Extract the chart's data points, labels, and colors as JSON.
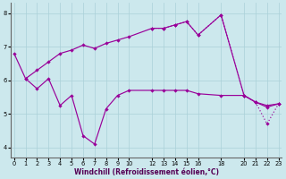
{
  "xlabel": "Windchill (Refroidissement éolien,°C)",
  "background_color": "#cce8ed",
  "grid_color": "#aad0d8",
  "line_color": "#990099",
  "xtick_values": [
    0,
    1,
    2,
    3,
    4,
    5,
    6,
    7,
    8,
    9,
    10,
    12,
    13,
    14,
    15,
    16,
    18,
    20,
    21,
    22,
    23
  ],
  "ylim": [
    3.7,
    8.3
  ],
  "xlim": [
    -0.3,
    23.3
  ],
  "line1_x": [
    0,
    1,
    2,
    3,
    4,
    5,
    6,
    7,
    8,
    9,
    10,
    12,
    13,
    14,
    15,
    16,
    18,
    20,
    21,
    22,
    23
  ],
  "line1_y": [
    6.8,
    6.05,
    5.75,
    6.05,
    5.25,
    5.55,
    4.35,
    4.1,
    5.15,
    5.55,
    5.7,
    5.7,
    5.7,
    5.7,
    5.7,
    5.6,
    5.55,
    5.55,
    5.35,
    5.25,
    5.3
  ],
  "line2_x": [
    1,
    2,
    3,
    4,
    5,
    6,
    7,
    8,
    9,
    10,
    12,
    13,
    14,
    15,
    16,
    18,
    20,
    21,
    22,
    23
  ],
  "line2_y": [
    6.05,
    6.3,
    6.55,
    6.8,
    6.9,
    7.05,
    6.95,
    7.1,
    7.2,
    7.3,
    7.55,
    7.55,
    7.65,
    7.75,
    7.35,
    7.95,
    5.55,
    5.35,
    5.2,
    5.3
  ],
  "line3_x": [
    12,
    13,
    14,
    15,
    16,
    18,
    20,
    21,
    22,
    23
  ],
  "line3_y": [
    7.55,
    7.55,
    7.65,
    7.75,
    7.35,
    7.95,
    5.55,
    5.35,
    4.7,
    5.3
  ]
}
